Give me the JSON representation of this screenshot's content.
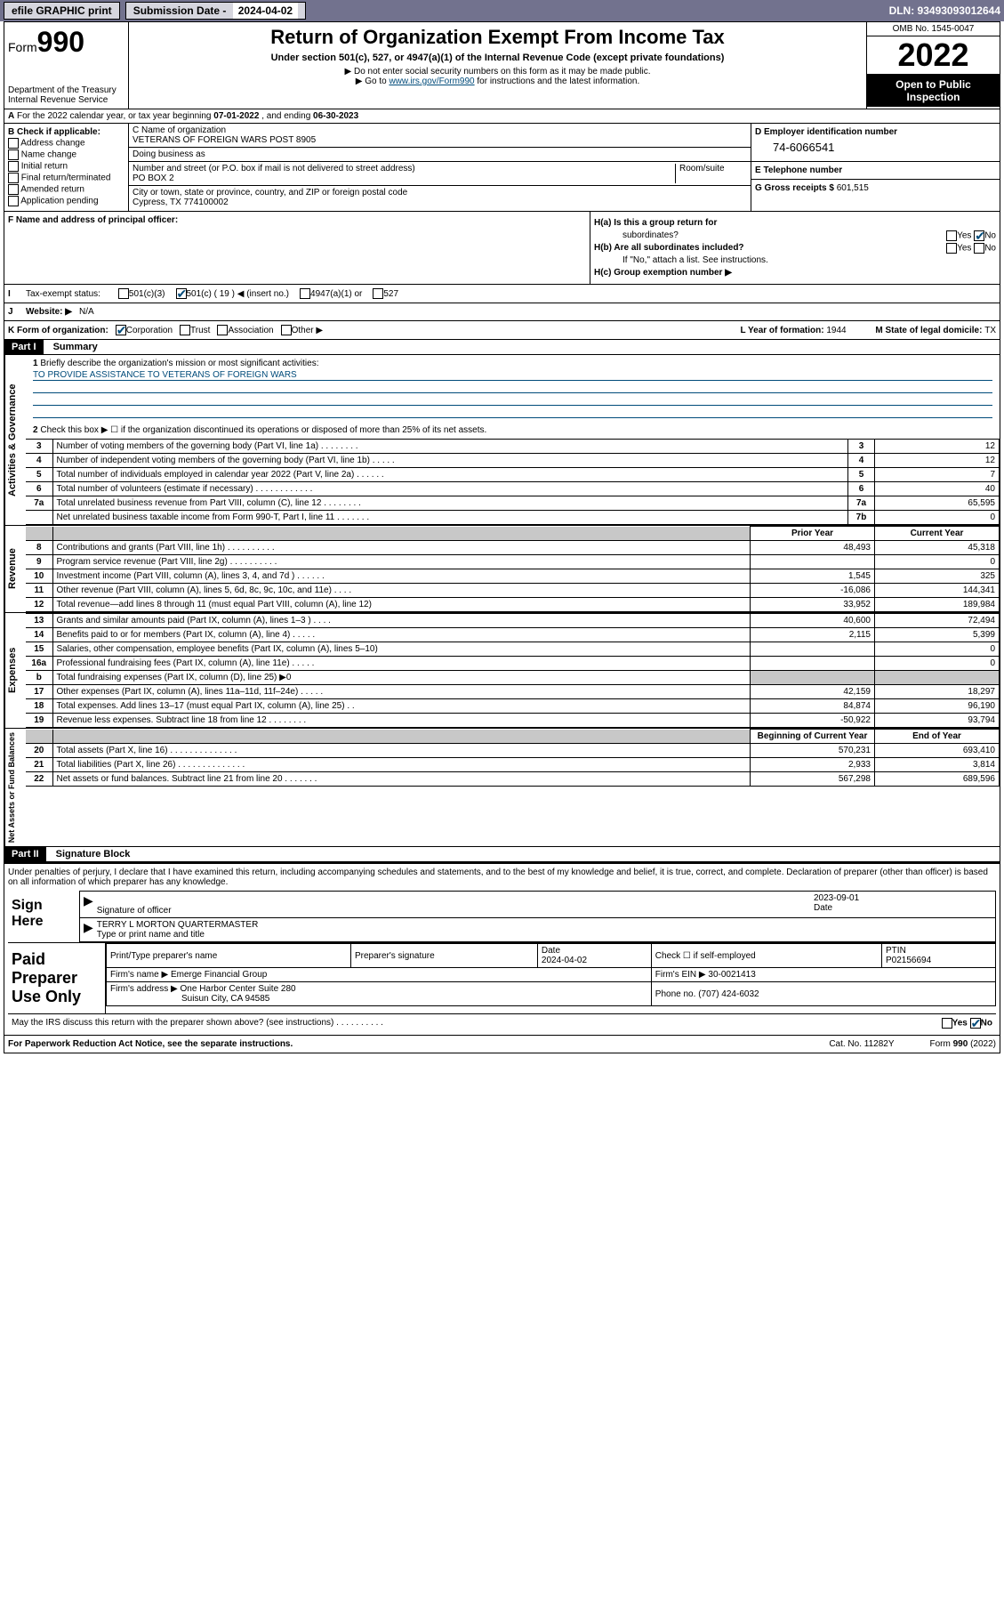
{
  "topbar": {
    "efile": "efile GRAPHIC print",
    "sublabel": "Submission Date - ",
    "subdate": "2024-04-02",
    "dln": "DLN: 93493093012644"
  },
  "header": {
    "form_word": "Form",
    "form_num": "990",
    "dept": "Department of the Treasury",
    "irs": "Internal Revenue Service",
    "title": "Return of Organization Exempt From Income Tax",
    "subtitle": "Under section 501(c), 527, or 4947(a)(1) of the Internal Revenue Code (except private foundations)",
    "instr1": "▶ Do not enter social security numbers on this form as it may be made public.",
    "instr2a": "▶ Go to ",
    "instr2link": "www.irs.gov/Form990",
    "instr2b": " for instructions and the latest information.",
    "omb": "OMB No. 1545-0047",
    "year": "2022",
    "inspect1": "Open to Public",
    "inspect2": "Inspection"
  },
  "rowA": {
    "text": "For the 2022 calendar year, or tax year beginning ",
    "begin": "07-01-2022",
    "mid": " , and ending ",
    "end": "06-30-2023",
    "prefix": "A"
  },
  "colB": {
    "title": "B Check if applicable:",
    "items": [
      "Address change",
      "Name change",
      "Initial return",
      "Final return/terminated",
      "Amended return",
      "Application pending"
    ]
  },
  "colC": {
    "name_label": "C Name of organization",
    "name": "VETERANS OF FOREIGN WARS POST 8905",
    "dba_label": "Doing business as",
    "dba": "",
    "addr_label": "Number and street (or P.O. box if mail is not delivered to street address)",
    "room_label": "Room/suite",
    "addr": "PO BOX 2",
    "city_label": "City or town, state or province, country, and ZIP or foreign postal code",
    "city": "Cypress, TX  774100002"
  },
  "colD": {
    "label": "D Employer identification number",
    "ein": "74-6066541"
  },
  "colE": {
    "label": "E Telephone number",
    "val": ""
  },
  "colG": {
    "label": "G Gross receipts $",
    "val": "601,515"
  },
  "rowF": {
    "label": "F  Name and address of principal officer:"
  },
  "rowH": {
    "a": "H(a)  Is this a group return for",
    "a2": "subordinates?",
    "b": "H(b)  Are all subordinates included?",
    "b2": "If \"No,\" attach a list. See instructions.",
    "c": "H(c)  Group exemption number ▶",
    "yes": "Yes",
    "no": "No"
  },
  "rowI": {
    "label": "Tax-exempt status:",
    "opts": [
      "501(c)(3)",
      "501(c) ( 19 ) ◀ (insert no.)",
      "4947(a)(1) or",
      "527"
    ],
    "prefix": "I"
  },
  "rowJ": {
    "label": "Website: ▶",
    "val": "N/A",
    "prefix": "J"
  },
  "rowK": {
    "label": "K Form of organization:",
    "opts": [
      "Corporation",
      "Trust",
      "Association",
      "Other ▶"
    ],
    "L": "L Year of formation: ",
    "Ly": "1944",
    "M": "M State of legal domicile: ",
    "Ms": "TX"
  },
  "part1": {
    "hdr": "Part I",
    "title": "Summary"
  },
  "mission": {
    "num": "1",
    "label": "Briefly describe the organization's mission or most significant activities:",
    "text": "TO PROVIDE ASSISTANCE TO VETERANS OF FOREIGN WARS"
  },
  "gov": {
    "label": "Activities & Governance",
    "line2": "Check this box ▶ ☐  if the organization discontinued its operations or disposed of more than 25% of its net assets.",
    "rows": [
      {
        "n": "3",
        "d": "Number of voting members of the governing body (Part VI, line 1a)   .    .    .    .    .    .    .    .",
        "b": "3",
        "v": "12"
      },
      {
        "n": "4",
        "d": "Number of independent voting members of the governing body (Part VI, line 1b)   .    .    .    .    .",
        "b": "4",
        "v": "12"
      },
      {
        "n": "5",
        "d": "Total number of individuals employed in calendar year 2022 (Part V, line 2a)   .    .    .    .    .    .",
        "b": "5",
        "v": "7"
      },
      {
        "n": "6",
        "d": "Total number of volunteers (estimate if necessary)   .    .    .    .    .    .    .    .    .    .    .    .",
        "b": "6",
        "v": "40"
      },
      {
        "n": "7a",
        "d": "Total unrelated business revenue from Part VIII, column (C), line 12   .    .    .    .    .    .    .    .",
        "b": "7a",
        "v": "65,595"
      },
      {
        "n": "",
        "d": "Net unrelated business taxable income from Form 990-T, Part I, line 11   .    .    .    .    .    .    .",
        "b": "7b",
        "v": "0"
      }
    ]
  },
  "rev": {
    "label": "Revenue",
    "hdr_prior": "Prior Year",
    "hdr_curr": "Current Year",
    "rows": [
      {
        "n": "8",
        "d": "Contributions and grants (Part VIII, line 1h)   .    .    .    .    .    .    .    .    .    .",
        "p": "48,493",
        "c": "45,318"
      },
      {
        "n": "9",
        "d": "Program service revenue (Part VIII, line 2g)   .    .    .    .    .    .    .    .    .    .",
        "p": "",
        "c": "0"
      },
      {
        "n": "10",
        "d": "Investment income (Part VIII, column (A), lines 3, 4, and 7d )   .    .    .    .    .    .",
        "p": "1,545",
        "c": "325"
      },
      {
        "n": "11",
        "d": "Other revenue (Part VIII, column (A), lines 5, 6d, 8c, 9c, 10c, and 11e)   .    .    .    .",
        "p": "-16,086",
        "c": "144,341"
      },
      {
        "n": "12",
        "d": "Total revenue—add lines 8 through 11 (must equal Part VIII, column (A), line 12)",
        "p": "33,952",
        "c": "189,984"
      }
    ]
  },
  "exp": {
    "label": "Expenses",
    "rows": [
      {
        "n": "13",
        "d": "Grants and similar amounts paid (Part IX, column (A), lines 1–3 )   .    .    .    .",
        "p": "40,600",
        "c": "72,494"
      },
      {
        "n": "14",
        "d": "Benefits paid to or for members (Part IX, column (A), line 4)   .    .    .    .    .",
        "p": "2,115",
        "c": "5,399"
      },
      {
        "n": "15",
        "d": "Salaries, other compensation, employee benefits (Part IX, column (A), lines 5–10)",
        "p": "",
        "c": "0"
      },
      {
        "n": "16a",
        "d": "Professional fundraising fees (Part IX, column (A), line 11e)   .    .    .    .    .",
        "p": "",
        "c": "0"
      },
      {
        "n": "b",
        "d": "Total fundraising expenses (Part IX, column (D), line 25) ▶0",
        "p": "grey",
        "c": "grey"
      },
      {
        "n": "17",
        "d": "Other expenses (Part IX, column (A), lines 11a–11d, 11f–24e)   .    .    .    .    .",
        "p": "42,159",
        "c": "18,297"
      },
      {
        "n": "18",
        "d": "Total expenses. Add lines 13–17 (must equal Part IX, column (A), line 25)   .    .",
        "p": "84,874",
        "c": "96,190"
      },
      {
        "n": "19",
        "d": "Revenue less expenses. Subtract line 18 from line 12   .    .    .    .    .    .    .    .",
        "p": "-50,922",
        "c": "93,794"
      }
    ]
  },
  "net": {
    "label": "Net Assets or Fund Balances",
    "hdr_beg": "Beginning of Current Year",
    "hdr_end": "End of Year",
    "rows": [
      {
        "n": "20",
        "d": "Total assets (Part X, line 16)   .    .    .    .    .    .    .    .    .    .    .    .    .    .",
        "p": "570,231",
        "c": "693,410"
      },
      {
        "n": "21",
        "d": "Total liabilities (Part X, line 26)   .    .    .    .    .    .    .    .    .    .    .    .    .    .",
        "p": "2,933",
        "c": "3,814"
      },
      {
        "n": "22",
        "d": "Net assets or fund balances. Subtract line 21 from line 20   .    .    .    .    .    .    .",
        "p": "567,298",
        "c": "689,596"
      }
    ]
  },
  "part2": {
    "hdr": "Part II",
    "title": "Signature Block"
  },
  "penalty": "Under penalties of perjury, I declare that I have examined this return, including accompanying schedules and statements, and to the best of my knowledge and belief, it is true, correct, and complete. Declaration of preparer (other than officer) is based on all information of which preparer has any knowledge.",
  "sign": {
    "label": "Sign Here",
    "sig": "Signature of officer",
    "date": "Date",
    "dateval": "2023-09-01",
    "name": "TERRY L MORTON  QUARTERMASTER",
    "name_label": "Type or print name and title"
  },
  "prep": {
    "label": "Paid Preparer Use Only",
    "h1": "Print/Type preparer's name",
    "h2": "Preparer's signature",
    "h3": "Date",
    "h3v": "2024-04-02",
    "h4": "Check ☐ if self-employed",
    "h5": "PTIN",
    "h5v": "P02156694",
    "firm_label": "Firm's name    ▶",
    "firm": "Emerge Financial Group",
    "ein_label": "Firm's EIN ▶",
    "ein": "30-0021413",
    "addr_label": "Firm's address ▶",
    "addr1": "One Harbor Center Suite 280",
    "addr2": "Suisun City, CA  94585",
    "phone_label": "Phone no.",
    "phone": "(707) 424-6032"
  },
  "discuss": {
    "q": "May the IRS discuss this return with the preparer shown above? (see instructions)   .    .    .    .    .    .    .    .    .    .",
    "yes": "Yes",
    "no": "No"
  },
  "footer": {
    "left": "For Paperwork Reduction Act Notice, see the separate instructions.",
    "mid": "Cat. No. 11282Y",
    "right": "Form 990 (2022)"
  }
}
